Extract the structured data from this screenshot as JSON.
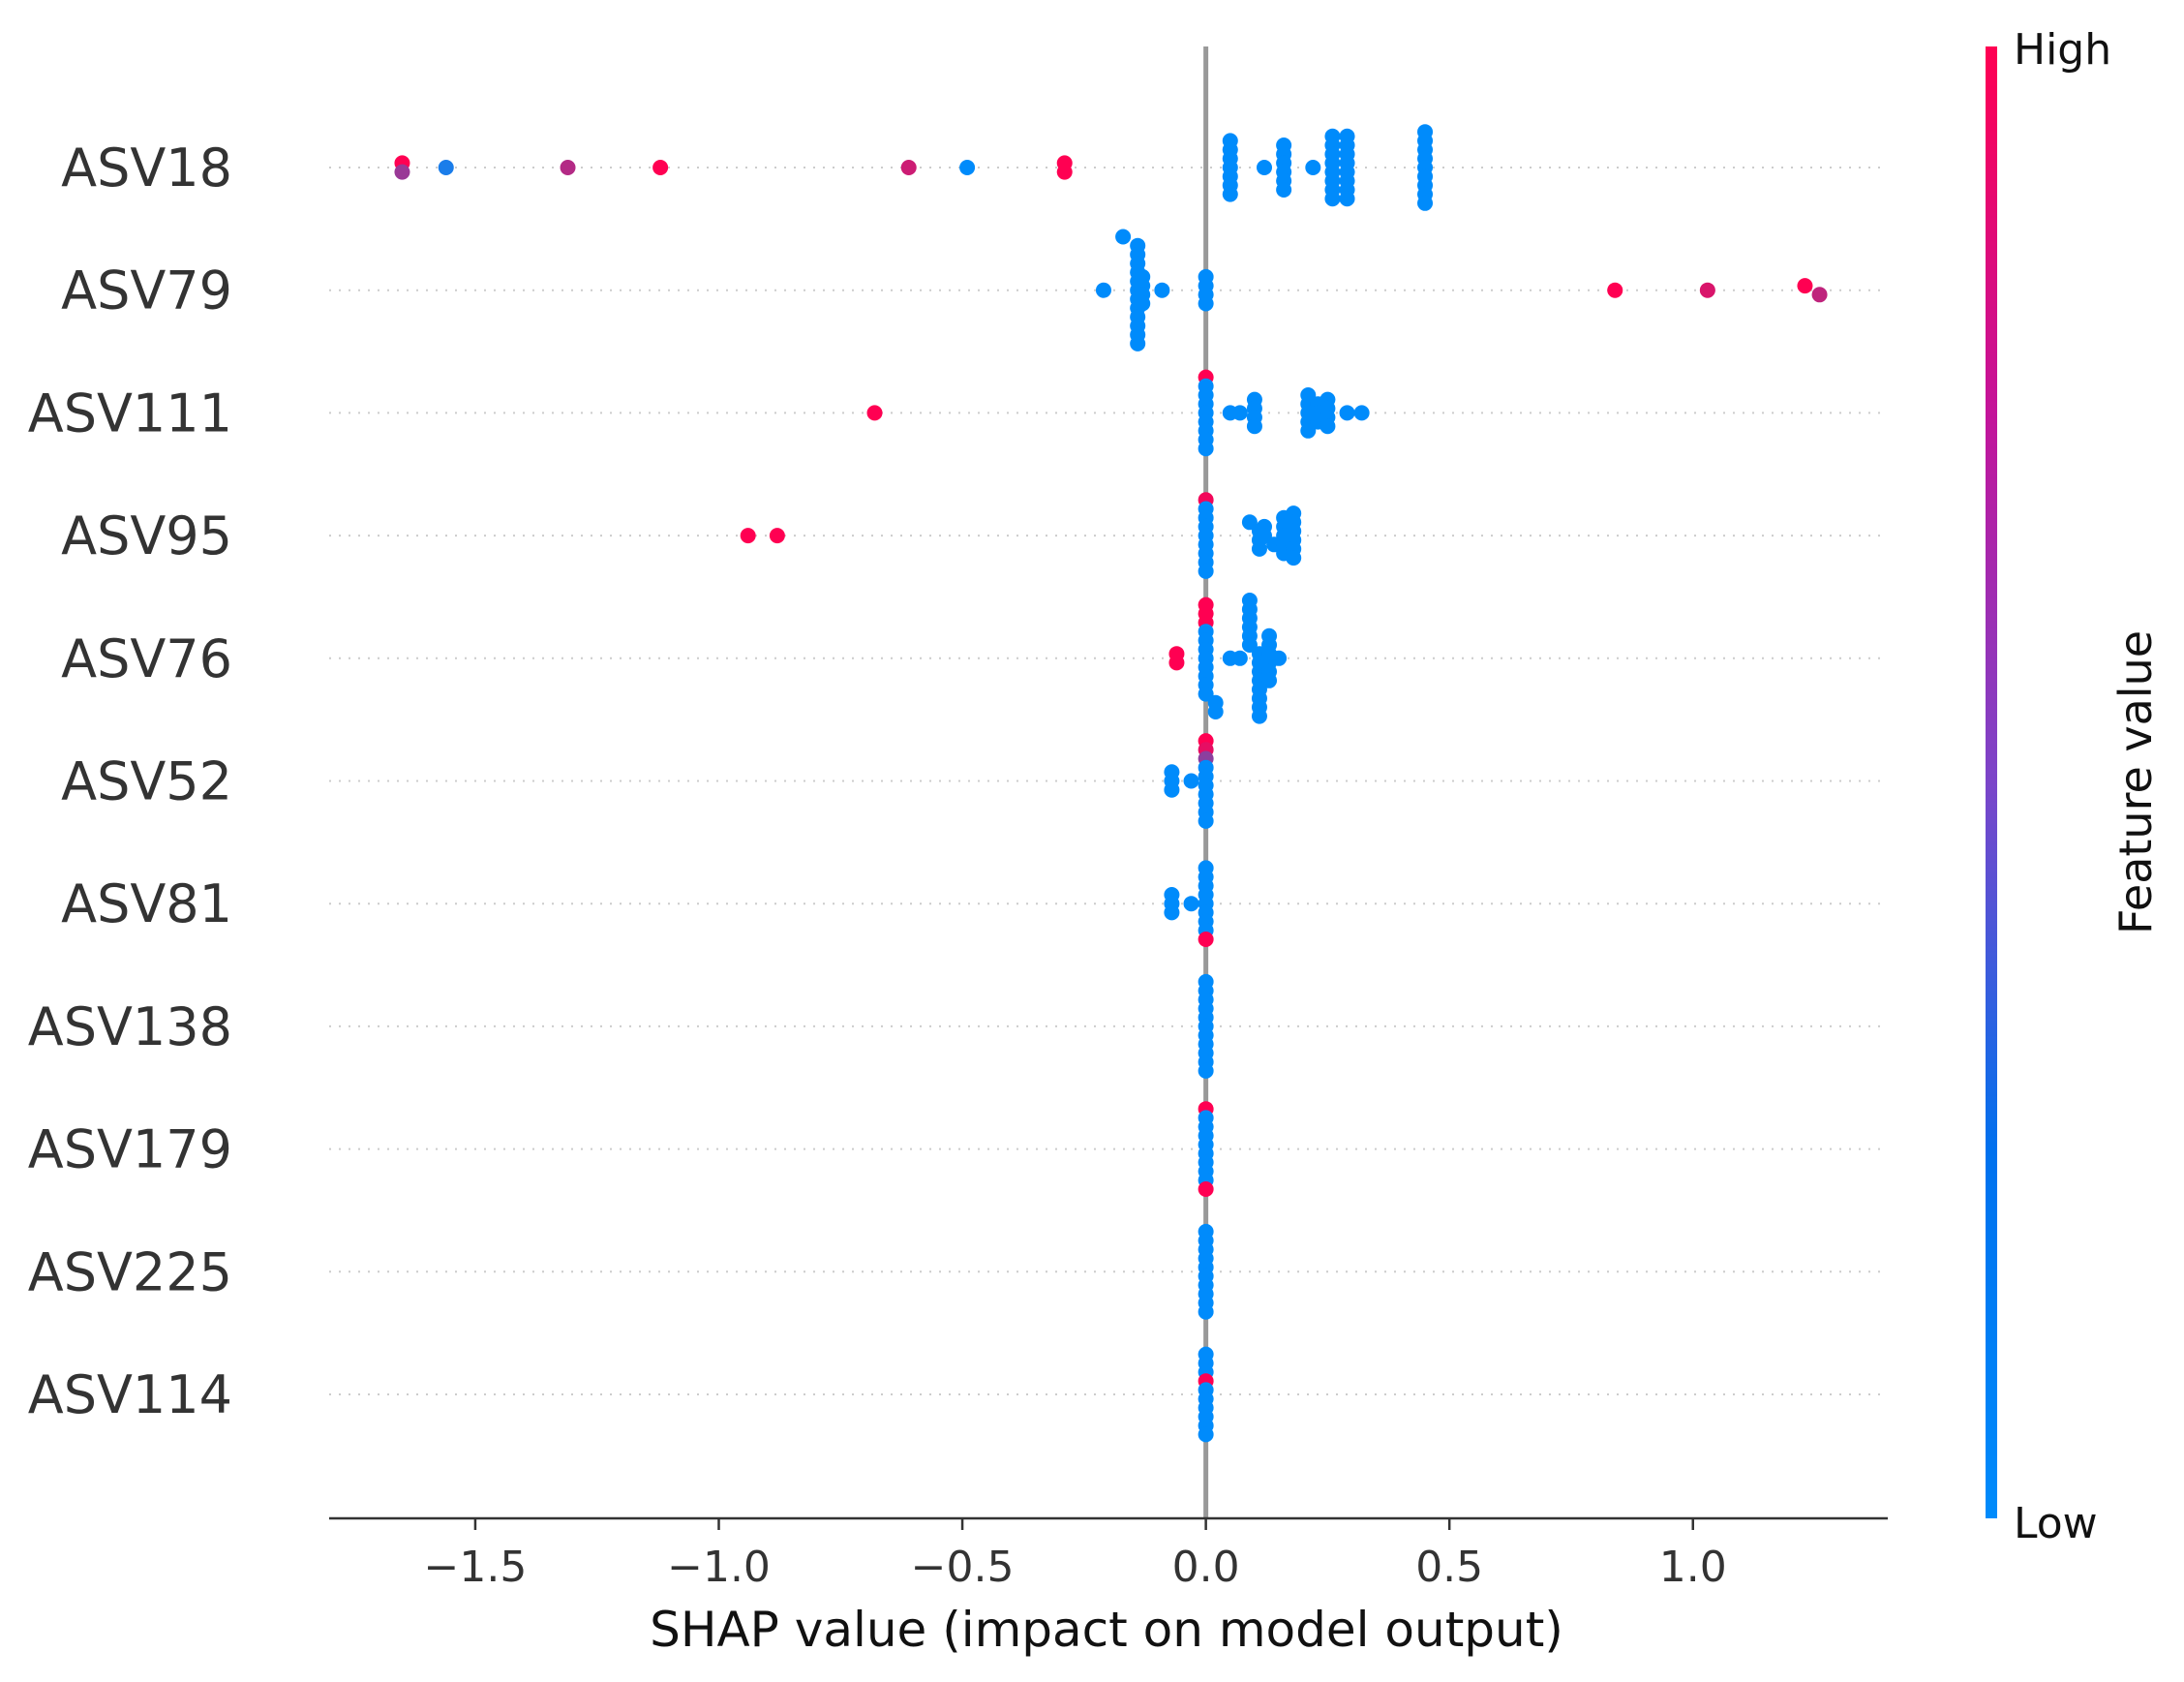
{
  "chart_data": {
    "type": "scatter",
    "subtype": "shap-beeswarm",
    "xlabel": "SHAP value (impact on model output)",
    "xlim": [
      -1.8,
      1.4
    ],
    "xticks": [
      -1.5,
      -1.0,
      -0.5,
      0.0,
      0.5,
      1.0
    ],
    "xtick_labels": [
      "−1.5",
      "−1.0",
      "−0.5",
      "0.0",
      "0.5",
      "1.0"
    ],
    "zero_line": 0.0,
    "grid": "dotted horizontal guide per feature",
    "colorbar": {
      "title": "Feature value",
      "high_label": "High",
      "low_label": "Low",
      "low_color": "#008bfb",
      "high_color": "#ff0052",
      "placement": "right"
    },
    "features": [
      {
        "name": "ASV18",
        "points": [
          {
            "x": -1.65,
            "v": 1.0
          },
          {
            "x": -1.65,
            "v": 0.6
          },
          {
            "x": -1.56,
            "v": 0.1
          },
          {
            "x": -1.31,
            "v": 0.7
          },
          {
            "x": -1.12,
            "v": 1.0
          },
          {
            "x": -0.61,
            "v": 0.8
          },
          {
            "x": -0.49,
            "v": 0.0
          },
          {
            "x": -0.29,
            "v": 1.0
          },
          {
            "x": -0.29,
            "v": 1.0
          },
          {
            "x": 0.05,
            "v": 0
          },
          {
            "x": 0.05,
            "v": 0
          },
          {
            "x": 0.05,
            "v": 0
          },
          {
            "x": 0.05,
            "v": 0
          },
          {
            "x": 0.05,
            "v": 0
          },
          {
            "x": 0.05,
            "v": 0
          },
          {
            "x": 0.05,
            "v": 0
          },
          {
            "x": 0.12,
            "v": 0
          },
          {
            "x": 0.16,
            "v": 0
          },
          {
            "x": 0.16,
            "v": 0
          },
          {
            "x": 0.16,
            "v": 0
          },
          {
            "x": 0.16,
            "v": 0
          },
          {
            "x": 0.16,
            "v": 0
          },
          {
            "x": 0.16,
            "v": 0
          },
          {
            "x": 0.22,
            "v": 0
          },
          {
            "x": 0.26,
            "v": 0
          },
          {
            "x": 0.26,
            "v": 0
          },
          {
            "x": 0.26,
            "v": 0
          },
          {
            "x": 0.26,
            "v": 0
          },
          {
            "x": 0.26,
            "v": 0
          },
          {
            "x": 0.26,
            "v": 0
          },
          {
            "x": 0.26,
            "v": 0
          },
          {
            "x": 0.26,
            "v": 0
          },
          {
            "x": 0.29,
            "v": 0
          },
          {
            "x": 0.29,
            "v": 0
          },
          {
            "x": 0.29,
            "v": 0
          },
          {
            "x": 0.29,
            "v": 0
          },
          {
            "x": 0.29,
            "v": 0
          },
          {
            "x": 0.29,
            "v": 0
          },
          {
            "x": 0.29,
            "v": 0
          },
          {
            "x": 0.29,
            "v": 0
          },
          {
            "x": 0.45,
            "v": 0
          },
          {
            "x": 0.45,
            "v": 0
          },
          {
            "x": 0.45,
            "v": 0
          },
          {
            "x": 0.45,
            "v": 0
          },
          {
            "x": 0.45,
            "v": 0
          },
          {
            "x": 0.45,
            "v": 0
          },
          {
            "x": 0.45,
            "v": 0
          },
          {
            "x": 0.45,
            "v": 0
          },
          {
            "x": 0.45,
            "v": 0
          }
        ]
      },
      {
        "name": "ASV79",
        "points": [
          {
            "x": -0.21,
            "v": 0
          },
          {
            "x": -0.17,
            "v": 0
          },
          {
            "x": -0.09,
            "v": 0
          },
          {
            "x": -0.14,
            "v": 0
          },
          {
            "x": -0.14,
            "v": 0
          },
          {
            "x": -0.14,
            "v": 0
          },
          {
            "x": -0.14,
            "v": 0
          },
          {
            "x": -0.14,
            "v": 0
          },
          {
            "x": -0.14,
            "v": 0
          },
          {
            "x": -0.14,
            "v": 0
          },
          {
            "x": -0.14,
            "v": 0
          },
          {
            "x": -0.14,
            "v": 0
          },
          {
            "x": -0.14,
            "v": 0
          },
          {
            "x": -0.14,
            "v": 0
          },
          {
            "x": -0.14,
            "v": 0
          },
          {
            "x": -0.13,
            "v": 0
          },
          {
            "x": -0.13,
            "v": 0
          },
          {
            "x": -0.13,
            "v": 0
          },
          {
            "x": -0.13,
            "v": 0
          },
          {
            "x": 0.0,
            "v": 0
          },
          {
            "x": 0.0,
            "v": 0
          },
          {
            "x": 0.0,
            "v": 0
          },
          {
            "x": 0.0,
            "v": 0
          },
          {
            "x": 0.84,
            "v": 1.0
          },
          {
            "x": 1.03,
            "v": 0.85
          },
          {
            "x": 1.23,
            "v": 1.0
          },
          {
            "x": 1.26,
            "v": 0.75
          }
        ]
      },
      {
        "name": "ASV111",
        "points": [
          {
            "x": -0.68,
            "v": 1.0
          },
          {
            "x": 0.0,
            "v": 1.0
          },
          {
            "x": 0.0,
            "v": 0
          },
          {
            "x": 0.0,
            "v": 0
          },
          {
            "x": 0.0,
            "v": 0
          },
          {
            "x": 0.0,
            "v": 0
          },
          {
            "x": 0.0,
            "v": 0
          },
          {
            "x": 0.0,
            "v": 0
          },
          {
            "x": 0.0,
            "v": 0
          },
          {
            "x": 0.0,
            "v": 0
          },
          {
            "x": 0.05,
            "v": 0
          },
          {
            "x": 0.07,
            "v": 0
          },
          {
            "x": 0.1,
            "v": 0
          },
          {
            "x": 0.1,
            "v": 0
          },
          {
            "x": 0.1,
            "v": 0
          },
          {
            "x": 0.1,
            "v": 0
          },
          {
            "x": 0.21,
            "v": 0
          },
          {
            "x": 0.21,
            "v": 0
          },
          {
            "x": 0.21,
            "v": 0
          },
          {
            "x": 0.21,
            "v": 0
          },
          {
            "x": 0.21,
            "v": 0
          },
          {
            "x": 0.23,
            "v": 0
          },
          {
            "x": 0.23,
            "v": 0
          },
          {
            "x": 0.23,
            "v": 0
          },
          {
            "x": 0.25,
            "v": 0
          },
          {
            "x": 0.25,
            "v": 0
          },
          {
            "x": 0.25,
            "v": 0
          },
          {
            "x": 0.25,
            "v": 0
          },
          {
            "x": 0.29,
            "v": 0
          },
          {
            "x": 0.32,
            "v": 0
          }
        ]
      },
      {
        "name": "ASV95",
        "points": [
          {
            "x": -0.94,
            "v": 1.0
          },
          {
            "x": -0.88,
            "v": 1.0
          },
          {
            "x": 0.0,
            "v": 0.95
          },
          {
            "x": 0.0,
            "v": 0
          },
          {
            "x": 0.0,
            "v": 0
          },
          {
            "x": 0.0,
            "v": 0
          },
          {
            "x": 0.0,
            "v": 0
          },
          {
            "x": 0.0,
            "v": 0
          },
          {
            "x": 0.0,
            "v": 0
          },
          {
            "x": 0.0,
            "v": 0
          },
          {
            "x": 0.0,
            "v": 0
          },
          {
            "x": 0.09,
            "v": 0
          },
          {
            "x": 0.11,
            "v": 0
          },
          {
            "x": 0.11,
            "v": 0
          },
          {
            "x": 0.11,
            "v": 0
          },
          {
            "x": 0.12,
            "v": 0
          },
          {
            "x": 0.12,
            "v": 0
          },
          {
            "x": 0.14,
            "v": 0
          },
          {
            "x": 0.16,
            "v": 0
          },
          {
            "x": 0.16,
            "v": 0
          },
          {
            "x": 0.16,
            "v": 0
          },
          {
            "x": 0.16,
            "v": 0
          },
          {
            "x": 0.16,
            "v": 0
          },
          {
            "x": 0.18,
            "v": 0
          },
          {
            "x": 0.18,
            "v": 0
          },
          {
            "x": 0.18,
            "v": 0
          },
          {
            "x": 0.18,
            "v": 0
          },
          {
            "x": 0.18,
            "v": 0
          },
          {
            "x": 0.18,
            "v": 0
          }
        ]
      },
      {
        "name": "ASV76",
        "points": [
          {
            "x": -0.06,
            "v": 1.0
          },
          {
            "x": -0.06,
            "v": 1.0
          },
          {
            "x": 0.0,
            "v": 1.0
          },
          {
            "x": 0.0,
            "v": 1.0
          },
          {
            "x": 0.0,
            "v": 1.0
          },
          {
            "x": 0.0,
            "v": 0
          },
          {
            "x": 0.0,
            "v": 0
          },
          {
            "x": 0.0,
            "v": 0
          },
          {
            "x": 0.0,
            "v": 0
          },
          {
            "x": 0.0,
            "v": 0
          },
          {
            "x": 0.0,
            "v": 0
          },
          {
            "x": 0.0,
            "v": 0
          },
          {
            "x": 0.0,
            "v": 0
          },
          {
            "x": 0.02,
            "v": 0
          },
          {
            "x": 0.02,
            "v": 0
          },
          {
            "x": 0.05,
            "v": 0
          },
          {
            "x": 0.07,
            "v": 0
          },
          {
            "x": 0.09,
            "v": 0
          },
          {
            "x": 0.09,
            "v": 0
          },
          {
            "x": 0.09,
            "v": 0
          },
          {
            "x": 0.09,
            "v": 0
          },
          {
            "x": 0.09,
            "v": 0
          },
          {
            "x": 0.09,
            "v": 0
          },
          {
            "x": 0.11,
            "v": 0
          },
          {
            "x": 0.11,
            "v": 0
          },
          {
            "x": 0.11,
            "v": 0
          },
          {
            "x": 0.11,
            "v": 0
          },
          {
            "x": 0.11,
            "v": 0
          },
          {
            "x": 0.11,
            "v": 0
          },
          {
            "x": 0.11,
            "v": 0
          },
          {
            "x": 0.11,
            "v": 0
          },
          {
            "x": 0.13,
            "v": 0
          },
          {
            "x": 0.13,
            "v": 0
          },
          {
            "x": 0.13,
            "v": 0
          },
          {
            "x": 0.13,
            "v": 0
          },
          {
            "x": 0.13,
            "v": 0
          },
          {
            "x": 0.13,
            "v": 0
          },
          {
            "x": 0.15,
            "v": 0
          }
        ]
      },
      {
        "name": "ASV52",
        "points": [
          {
            "x": -0.07,
            "v": 0
          },
          {
            "x": -0.07,
            "v": 0
          },
          {
            "x": -0.07,
            "v": 0
          },
          {
            "x": -0.03,
            "v": 0
          },
          {
            "x": 0.0,
            "v": 1.0
          },
          {
            "x": 0.0,
            "v": 0.9
          },
          {
            "x": 0.0,
            "v": 0.55
          },
          {
            "x": 0.0,
            "v": 0
          },
          {
            "x": 0.0,
            "v": 0
          },
          {
            "x": 0.0,
            "v": 0
          },
          {
            "x": 0.0,
            "v": 0
          },
          {
            "x": 0.0,
            "v": 0
          },
          {
            "x": 0.0,
            "v": 0
          },
          {
            "x": 0.0,
            "v": 0
          }
        ]
      },
      {
        "name": "ASV81",
        "points": [
          {
            "x": -0.07,
            "v": 0
          },
          {
            "x": -0.07,
            "v": 0
          },
          {
            "x": -0.07,
            "v": 0
          },
          {
            "x": -0.03,
            "v": 0
          },
          {
            "x": 0.0,
            "v": 0
          },
          {
            "x": 0.0,
            "v": 0
          },
          {
            "x": 0.0,
            "v": 0
          },
          {
            "x": 0.0,
            "v": 0
          },
          {
            "x": 0.0,
            "v": 0
          },
          {
            "x": 0.0,
            "v": 0
          },
          {
            "x": 0.0,
            "v": 0
          },
          {
            "x": 0.0,
            "v": 0
          },
          {
            "x": 0.0,
            "v": 1.0
          }
        ]
      },
      {
        "name": "ASV138",
        "points": [
          {
            "x": 0.0,
            "v": 0
          },
          {
            "x": 0.0,
            "v": 0
          },
          {
            "x": 0.0,
            "v": 0
          },
          {
            "x": 0.0,
            "v": 0
          },
          {
            "x": 0.0,
            "v": 0
          },
          {
            "x": 0.0,
            "v": 0
          },
          {
            "x": 0.0,
            "v": 0
          },
          {
            "x": 0.0,
            "v": 0
          },
          {
            "x": 0.0,
            "v": 0
          },
          {
            "x": 0.0,
            "v": 0
          },
          {
            "x": 0.0,
            "v": 0
          }
        ]
      },
      {
        "name": "ASV179",
        "points": [
          {
            "x": 0.0,
            "v": 1.0
          },
          {
            "x": 0.0,
            "v": 0
          },
          {
            "x": 0.0,
            "v": 0
          },
          {
            "x": 0.0,
            "v": 0
          },
          {
            "x": 0.0,
            "v": 0
          },
          {
            "x": 0.0,
            "v": 0
          },
          {
            "x": 0.0,
            "v": 0
          },
          {
            "x": 0.0,
            "v": 0
          },
          {
            "x": 0.0,
            "v": 0
          },
          {
            "x": 0.0,
            "v": 1.0
          }
        ]
      },
      {
        "name": "ASV225",
        "points": [
          {
            "x": 0.0,
            "v": 0
          },
          {
            "x": 0.0,
            "v": 0
          },
          {
            "x": 0.0,
            "v": 0
          },
          {
            "x": 0.0,
            "v": 0
          },
          {
            "x": 0.0,
            "v": 0
          },
          {
            "x": 0.0,
            "v": 0
          },
          {
            "x": 0.0,
            "v": 0
          },
          {
            "x": 0.0,
            "v": 0
          },
          {
            "x": 0.0,
            "v": 0
          },
          {
            "x": 0.0,
            "v": 0
          }
        ]
      },
      {
        "name": "ASV114",
        "points": [
          {
            "x": 0.0,
            "v": 0
          },
          {
            "x": 0.0,
            "v": 0
          },
          {
            "x": 0.0,
            "v": 0
          },
          {
            "x": 0.0,
            "v": 1.0
          },
          {
            "x": 0.0,
            "v": 0
          },
          {
            "x": 0.0,
            "v": 0
          },
          {
            "x": 0.0,
            "v": 0
          },
          {
            "x": 0.0,
            "v": 0
          },
          {
            "x": 0.0,
            "v": 0
          },
          {
            "x": 0.0,
            "v": 0
          }
        ]
      }
    ]
  }
}
